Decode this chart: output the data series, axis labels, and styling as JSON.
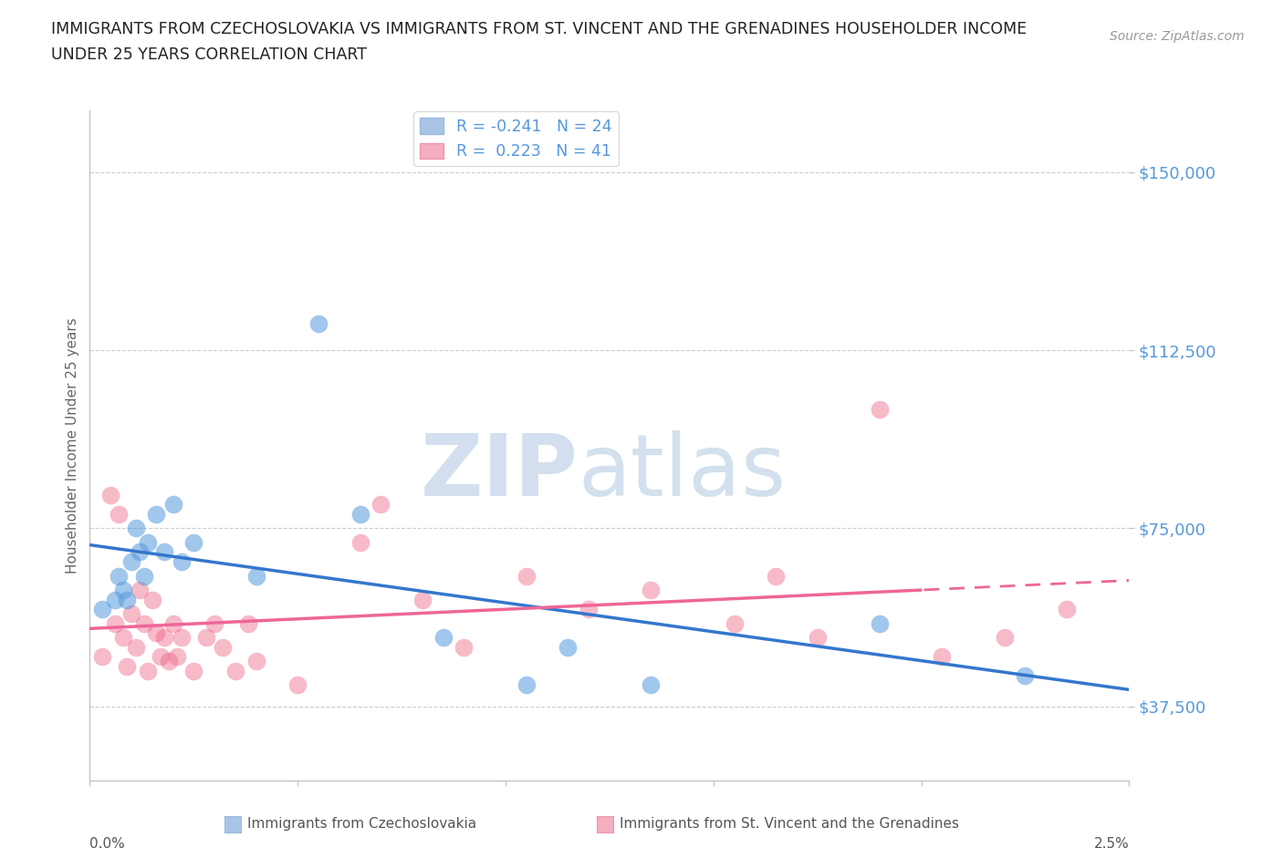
{
  "title_line1": "IMMIGRANTS FROM CZECHOSLOVAKIA VS IMMIGRANTS FROM ST. VINCENT AND THE GRENADINES HOUSEHOLDER INCOME",
  "title_line2": "UNDER 25 YEARS CORRELATION CHART",
  "source": "Source: ZipAtlas.com",
  "ylabel": "Householder Income Under 25 years",
  "y_ticks": [
    37500,
    75000,
    112500,
    150000
  ],
  "y_tick_labels": [
    "$37,500",
    "$75,000",
    "$112,500",
    "$150,000"
  ],
  "xmin": 0.0,
  "xmax": 2.5,
  "ymin": 22000,
  "ymax": 163000,
  "legend1_label": "R = -0.241   N = 24",
  "legend2_label": "R =  0.223   N = 41",
  "legend1_color": "#aac4e8",
  "legend2_color": "#f5adc0",
  "blue_color": "#5599dd",
  "pink_color": "#ee6688",
  "blue_line_color": "#3377cc",
  "pink_line_color": "#ee6699",
  "blue_scatter_x": [
    0.03,
    0.06,
    0.07,
    0.08,
    0.09,
    0.1,
    0.11,
    0.12,
    0.13,
    0.14,
    0.16,
    0.18,
    0.2,
    0.22,
    0.25,
    0.4,
    0.55,
    0.65,
    0.85,
    1.05,
    1.15,
    1.35,
    1.9,
    2.25
  ],
  "blue_scatter_y": [
    58000,
    60000,
    65000,
    62000,
    60000,
    68000,
    75000,
    70000,
    65000,
    72000,
    78000,
    70000,
    80000,
    68000,
    72000,
    65000,
    118000,
    78000,
    52000,
    42000,
    50000,
    42000,
    55000,
    44000
  ],
  "pink_scatter_x": [
    0.03,
    0.05,
    0.06,
    0.07,
    0.08,
    0.09,
    0.1,
    0.11,
    0.12,
    0.13,
    0.14,
    0.15,
    0.16,
    0.17,
    0.18,
    0.19,
    0.2,
    0.21,
    0.22,
    0.25,
    0.28,
    0.3,
    0.32,
    0.35,
    0.38,
    0.4,
    0.5,
    0.65,
    0.7,
    0.8,
    0.9,
    1.05,
    1.2,
    1.35,
    1.55,
    1.65,
    1.75,
    1.9,
    2.05,
    2.2,
    2.35
  ],
  "pink_scatter_y": [
    48000,
    82000,
    55000,
    78000,
    52000,
    46000,
    57000,
    50000,
    62000,
    55000,
    45000,
    60000,
    53000,
    48000,
    52000,
    47000,
    55000,
    48000,
    52000,
    45000,
    52000,
    55000,
    50000,
    45000,
    55000,
    47000,
    42000,
    72000,
    80000,
    60000,
    50000,
    65000,
    58000,
    62000,
    55000,
    65000,
    52000,
    100000,
    48000,
    52000,
    58000
  ],
  "bottom_label1": "Immigrants from Czechoslovakia",
  "bottom_label2": "Immigrants from St. Vincent and the Grenadines"
}
